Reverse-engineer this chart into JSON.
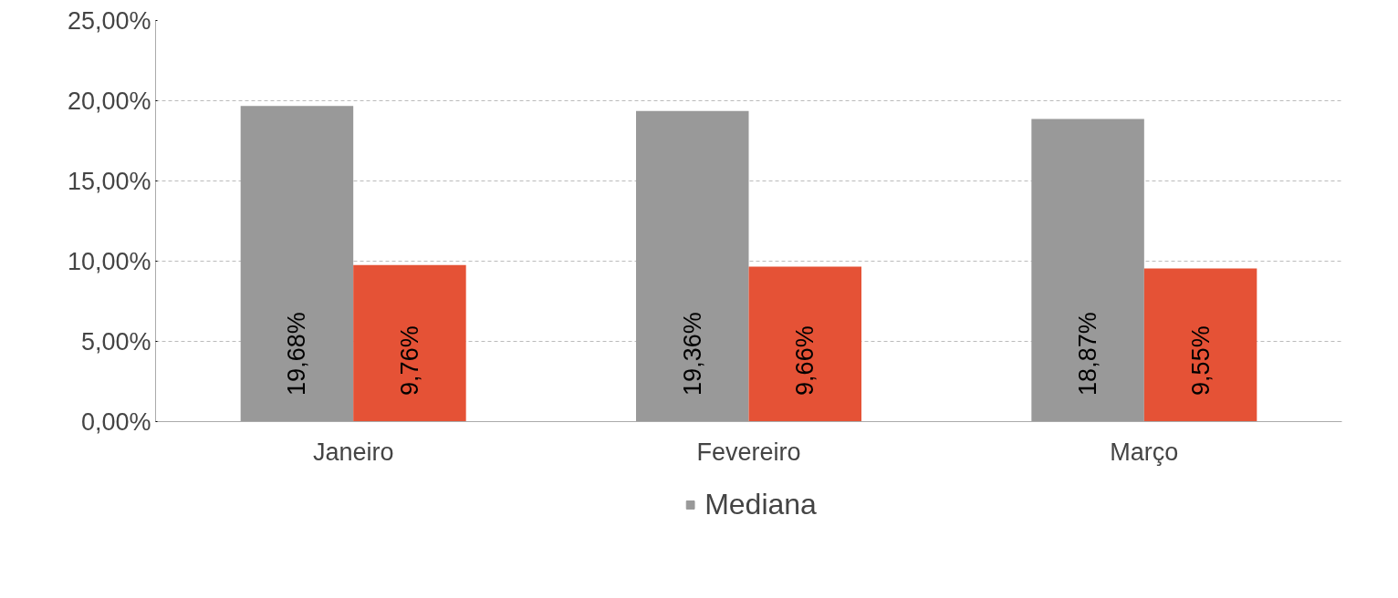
{
  "chart_data": {
    "type": "bar",
    "categories": [
      "Janeiro",
      "Fevereiro",
      "Março"
    ],
    "series": [
      {
        "name": "Mediana",
        "color": "#999999",
        "values": [
          19.68,
          19.36,
          18.87
        ],
        "value_labels": [
          "19,68%",
          "19,36%",
          "18,87%"
        ]
      },
      {
        "color": "#e55236",
        "values": [
          9.76,
          9.66,
          9.55
        ],
        "value_labels": [
          "9,76%",
          "9,66%",
          "9,55%"
        ]
      }
    ],
    "ylim": [
      0,
      25
    ],
    "yticks": [
      {
        "value": 0,
        "label": "0,00%"
      },
      {
        "value": 5,
        "label": "5,00%"
      },
      {
        "value": 10,
        "label": "10,00%"
      },
      {
        "value": 15,
        "label": "15,00%"
      },
      {
        "value": 20,
        "label": "20,00%"
      },
      {
        "value": 25,
        "label": "25,00%"
      }
    ],
    "grid": "y",
    "legend": "bottom"
  }
}
